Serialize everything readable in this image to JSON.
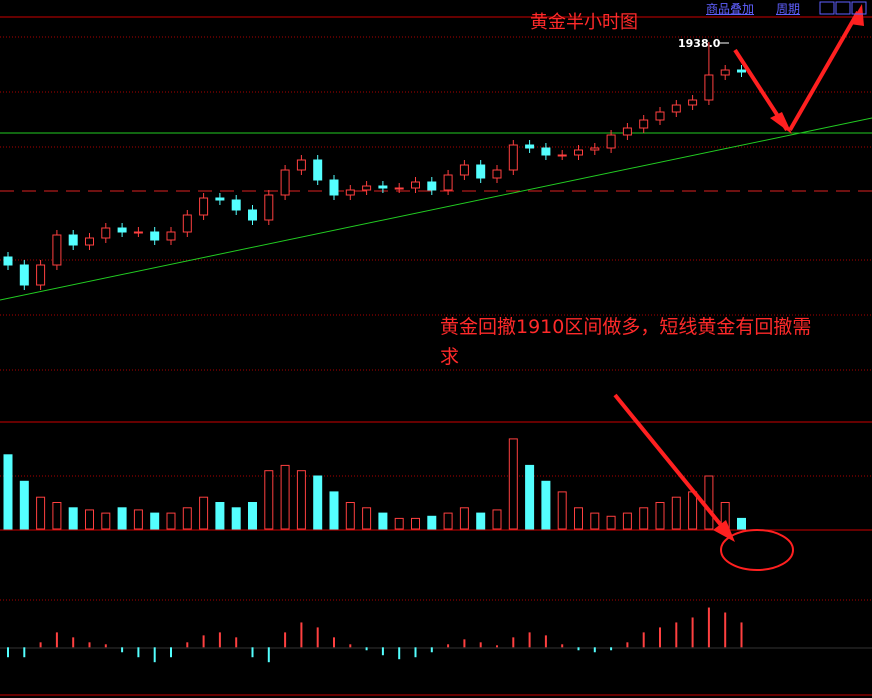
{
  "toolbar": {
    "items": [
      "商品叠加",
      "周期"
    ]
  },
  "chart_data": [
    {
      "type": "candlestick",
      "title": "黄金半小时图",
      "annotation": "黄金回撤1910区间做多，短线黄金有回撤需求",
      "peak_label": "1938.0",
      "ylim": [
        1862.4,
        1943
      ],
      "up_color": "#ff4040",
      "down_color": "#54ffff",
      "open": [
        1895,
        1893.4,
        1889.4,
        1893.4,
        1899.4,
        1897.4,
        1898.8,
        1900.8,
        1900,
        1900,
        1898.4,
        1900,
        1903.4,
        1906.8,
        1906.4,
        1904.4,
        1902.4,
        1907.4,
        1912.4,
        1914.4,
        1910.4,
        1907.4,
        1908.4,
        1909.2,
        1908.8,
        1908.8,
        1910,
        1908.4,
        1911.4,
        1913.4,
        1910.8,
        1912.4,
        1917.4,
        1916.8,
        1915.4,
        1915.4,
        1916.4,
        1916.8,
        1919.4,
        1920.8,
        1922.4,
        1924,
        1925.4,
        1926.4,
        1931.4,
        1932.4
      ],
      "high": [
        1896,
        1894.4,
        1894.4,
        1900.4,
        1900.4,
        1899.8,
        1901.8,
        1901.8,
        1901,
        1901,
        1901,
        1904.4,
        1907.8,
        1907.8,
        1907.4,
        1905.4,
        1908.4,
        1913.4,
        1915.4,
        1915.4,
        1911.4,
        1909.4,
        1910.2,
        1910.2,
        1909.8,
        1911,
        1911,
        1912.4,
        1914.4,
        1914.4,
        1913.4,
        1918.4,
        1918.4,
        1917.8,
        1916.4,
        1917.4,
        1917.8,
        1920.4,
        1921.8,
        1923.4,
        1925,
        1926.4,
        1927.4,
        1938,
        1933.4,
        1933.4
      ],
      "low": [
        1892.4,
        1888.4,
        1888.4,
        1892.4,
        1896.4,
        1896.4,
        1897.8,
        1899,
        1899,
        1897.4,
        1897.4,
        1899,
        1902.4,
        1905.4,
        1903.4,
        1901.4,
        1901.4,
        1906.4,
        1911.4,
        1909.4,
        1906.4,
        1906.4,
        1907.4,
        1907.8,
        1907.8,
        1907.8,
        1907.4,
        1907.4,
        1910.4,
        1909.8,
        1909.8,
        1911.4,
        1915.8,
        1914.4,
        1914.4,
        1914.4,
        1915.4,
        1915.8,
        1918.4,
        1919.8,
        1921.4,
        1923,
        1924.4,
        1925.4,
        1930.4,
        1931
      ],
      "close": [
        1893.4,
        1889.4,
        1893.4,
        1899.4,
        1897.4,
        1898.8,
        1900.8,
        1900,
        1900,
        1898.4,
        1900,
        1903.4,
        1906.8,
        1906.4,
        1904.4,
        1902.4,
        1907.4,
        1912.4,
        1914.4,
        1910.4,
        1907.4,
        1908.4,
        1909.2,
        1908.8,
        1908.8,
        1910,
        1908.4,
        1911.4,
        1913.4,
        1910.8,
        1912.4,
        1917.4,
        1916.8,
        1915.4,
        1915.4,
        1916.4,
        1916.8,
        1919.4,
        1920.8,
        1922.4,
        1924,
        1925.4,
        1926.4,
        1931.4,
        1932.4,
        1932
      ]
    },
    {
      "type": "volume",
      "ylim": [
        0,
        100
      ],
      "values": [
        70,
        45,
        30,
        25,
        20,
        18,
        15,
        20,
        18,
        15,
        15,
        20,
        30,
        25,
        20,
        25,
        55,
        60,
        55,
        50,
        35,
        25,
        20,
        15,
        10,
        10,
        12,
        15,
        20,
        15,
        18,
        85,
        60,
        45,
        35,
        20,
        15,
        12,
        15,
        20,
        25,
        30,
        35,
        50,
        25,
        10
      ]
    },
    {
      "type": "macd",
      "ylim": [
        -4.7,
        11.6
      ],
      "values": [
        -1,
        -1,
        0.5,
        1.5,
        1,
        0.5,
        0.3,
        -0.5,
        -1,
        -1.5,
        -1,
        0.5,
        1.2,
        1.5,
        1,
        -1,
        -1.5,
        1.5,
        2.5,
        2,
        1,
        0.3,
        -0.3,
        -0.8,
        -1.2,
        -1,
        -0.5,
        0.3,
        0.8,
        0.5,
        0.2,
        1,
        1.5,
        1.2,
        0.3,
        -0.3,
        -0.5,
        -0.3,
        0.5,
        1.5,
        2,
        2.5,
        3,
        4,
        3.5,
        2.5
      ]
    }
  ]
}
